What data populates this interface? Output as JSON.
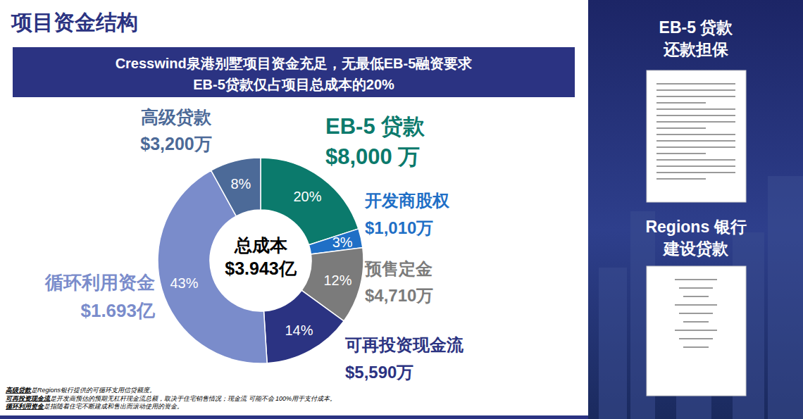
{
  "chart_data": {
    "type": "pie",
    "title": "项目资金结构",
    "subtitle": [
      "Cresswind泉港别墅项目资金充足，无最低EB-5融资要求",
      "EB-5贷款仅占项目总成本的20%"
    ],
    "center_text": [
      "总成本",
      "$3.943亿"
    ],
    "categories": [
      "EB-5 贷款",
      "开发商股权",
      "预售定金",
      "可再投资现金流",
      "循环利用资金",
      "高级贷款"
    ],
    "values": [
      20,
      3,
      12,
      14,
      43,
      8
    ],
    "value_labels": [
      "20%",
      "3%",
      "12%",
      "14%",
      "43%",
      "8%"
    ],
    "amount_labels": [
      "$8,000 万",
      "$1,010万",
      "$4,710万",
      "$5,590万",
      "$1.693亿",
      "$3,200万"
    ],
    "colors": [
      "#0b7a6c",
      "#1f6fc6",
      "#7b7b7b",
      "#2b3382",
      "#7a8ccb",
      "#4c6a98"
    ],
    "data_labels": true
  },
  "side_panel": {
    "sections": [
      [
        "EB-5 贷款",
        "还款担保"
      ],
      [
        "Regions 银行",
        "建设贷款"
      ]
    ]
  },
  "footnotes": [
    {
      "term": "高级贷款",
      "text": "是Regions银行提供的可循环支用信贷额度。"
    },
    {
      "term": "可再投资现金流",
      "text": "是开发商预估的预期无杠杆现金流总额，取决于住宅销售情况；现金流 可能不会 100%用于支付成本。"
    },
    {
      "term": "循环利用资金",
      "text": "是指随着住宅不断建成和售出而滚动使用的资金。"
    }
  ]
}
